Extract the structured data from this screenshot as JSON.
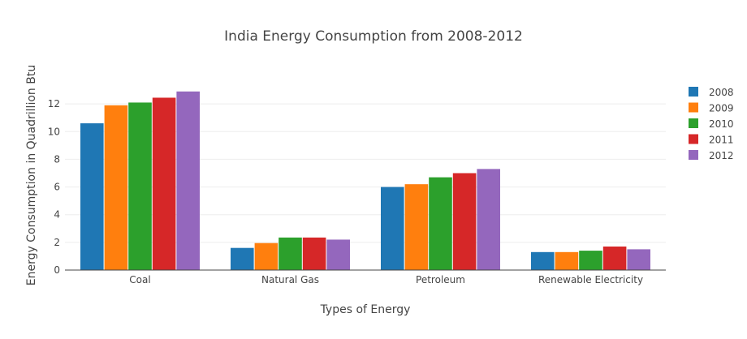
{
  "chart_data": {
    "type": "bar",
    "title": "India Energy Consumption from 2008-2012",
    "xlabel": "Types of Energy",
    "ylabel": "Energy Consumption in Quadrillion Btu",
    "categories": [
      "Coal",
      "Natural Gas",
      "Petroleum",
      "Renewable Electricity"
    ],
    "ylim": [
      0,
      14
    ],
    "yticks": [
      0,
      2,
      4,
      6,
      8,
      10,
      12
    ],
    "grid": true,
    "legend_position": "right",
    "series": [
      {
        "name": "2008",
        "color": "#1f77b4",
        "values": [
          10.6,
          1.6,
          6.0,
          1.3
        ]
      },
      {
        "name": "2009",
        "color": "#ff7f0e",
        "values": [
          11.9,
          1.95,
          6.2,
          1.3
        ]
      },
      {
        "name": "2010",
        "color": "#2ca02c",
        "values": [
          12.1,
          2.35,
          6.7,
          1.4
        ]
      },
      {
        "name": "2011",
        "color": "#d62728",
        "values": [
          12.45,
          2.35,
          7.0,
          1.7
        ]
      },
      {
        "name": "2012",
        "color": "#9467bd",
        "values": [
          12.9,
          2.2,
          7.3,
          1.5
        ]
      }
    ]
  }
}
